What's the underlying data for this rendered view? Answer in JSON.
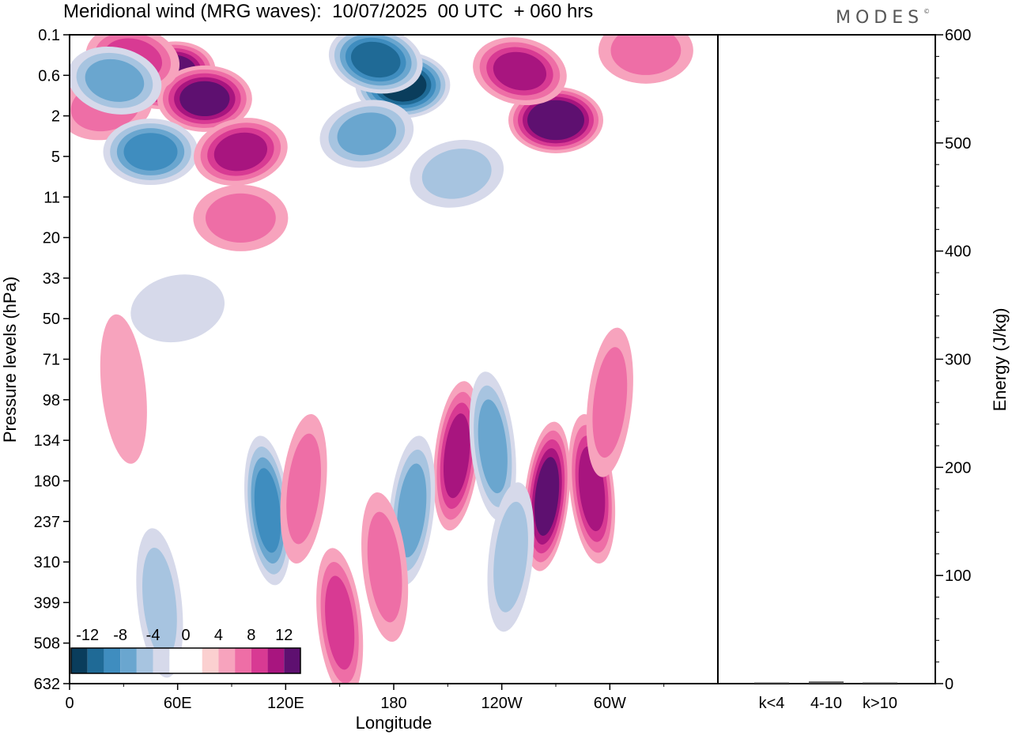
{
  "title": "Meridional wind (MRG waves):  10/07/2025  00 UTC  + 060 hrs",
  "brand": "MODES",
  "chart_data": [
    {
      "type": "heatmap",
      "title": "Meridional wind (MRG waves):  10/07/2025  00 UTC  + 060 hrs",
      "xlabel": "Longitude",
      "ylabel": "Pressure levels (hPa)",
      "x_ticks": [
        "0",
        "60E",
        "120E",
        "180",
        "120W",
        "60W"
      ],
      "y_ticks": [
        "0.1",
        "0.6",
        "2",
        "5",
        "11",
        "20",
        "33",
        "50",
        "71",
        "98",
        "134",
        "180",
        "237",
        "310",
        "399",
        "508",
        "632"
      ],
      "colorbar": {
        "labels": [
          "-12",
          "-8",
          "-4",
          "0",
          "4",
          "8",
          "12"
        ],
        "colors": [
          "#0a3d5c",
          "#1f6a96",
          "#3f8dbf",
          "#6aa6cf",
          "#a7c4e0",
          "#d6d9ea",
          "#ffffff",
          "#ffffff",
          "#fbd0d0",
          "#f7a3bd",
          "#ee6ea6",
          "#d83a93",
          "#a8157f",
          "#5e1070"
        ]
      },
      "blobs": [
        {
          "lon": 55,
          "lev": 0.6,
          "value": 14
        },
        {
          "lon": 75,
          "lev": 1.2,
          "value": 12
        },
        {
          "lon": 35,
          "lev": 0.3,
          "value": 8
        },
        {
          "lon": 20,
          "lev": 1.5,
          "value": 6
        },
        {
          "lon": 185,
          "lev": 0.8,
          "value": -14
        },
        {
          "lon": 170,
          "lev": 0.3,
          "value": -12
        },
        {
          "lon": 165,
          "lev": 3,
          "value": -8
        },
        {
          "lon": 45,
          "lev": 4.5,
          "value": -10
        },
        {
          "lon": 25,
          "lev": 0.7,
          "value": -8
        },
        {
          "lon": 95,
          "lev": 4.5,
          "value": 10
        },
        {
          "lon": 270,
          "lev": 2.2,
          "value": 14
        },
        {
          "lon": 250,
          "lev": 0.5,
          "value": 10
        },
        {
          "lon": 215,
          "lev": 7,
          "value": -6
        },
        {
          "lon": 320,
          "lev": 0.2,
          "value": 6
        },
        {
          "lon": 110,
          "lev": 220,
          "value": -10
        },
        {
          "lon": 215,
          "lev": 150,
          "value": 10
        },
        {
          "lon": 235,
          "lev": 140,
          "value": -8
        },
        {
          "lon": 265,
          "lev": 200,
          "value": 12
        },
        {
          "lon": 290,
          "lev": 190,
          "value": 10
        },
        {
          "lon": 300,
          "lev": 100,
          "value": 6
        },
        {
          "lon": 150,
          "lev": 450,
          "value": 8
        },
        {
          "lon": 130,
          "lev": 190,
          "value": 5
        },
        {
          "lon": 50,
          "lev": 400,
          "value": -5
        },
        {
          "lon": 190,
          "lev": 220,
          "value": -7
        },
        {
          "lon": 175,
          "lev": 320,
          "value": 5
        },
        {
          "lon": 245,
          "lev": 300,
          "value": -5
        },
        {
          "lon": 30,
          "lev": 90,
          "value": 4
        },
        {
          "lon": 60,
          "lev": 45,
          "value": -4
        },
        {
          "lon": 95,
          "lev": 15,
          "value": 5
        }
      ]
    },
    {
      "type": "bar",
      "ylabel": "Energy (J/kg)",
      "categories": [
        "k<4",
        "4-10",
        "k>10"
      ],
      "values": [
        0.5,
        2,
        0.3
      ],
      "ylim": [
        0,
        600
      ],
      "y_ticks": [
        "0",
        "100",
        "200",
        "300",
        "400",
        "500",
        "600"
      ]
    }
  ]
}
